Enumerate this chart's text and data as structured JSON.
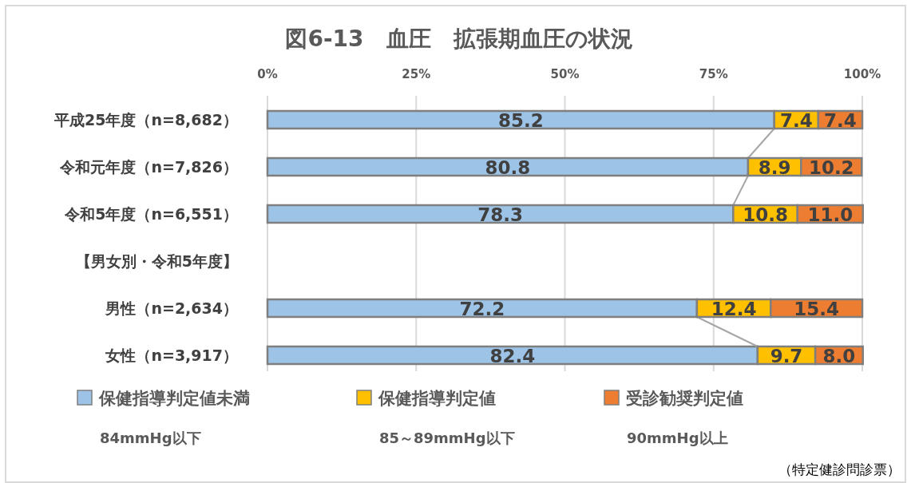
{
  "chart_data": {
    "type": "bar",
    "orientation": "horizontal",
    "stacked": true,
    "title": "図6-13　血圧　拡張期血圧の状況",
    "categories": [
      "平成25年度（n=8,682）",
      "令和元年度（n=7,826）",
      "令和5年度（n=6,551）",
      "【男女別・令和5年度】",
      "男性（n=2,634）",
      "女性（n=3,917）"
    ],
    "series": [
      {
        "name": "保健指導判定値未満",
        "color": "#9dc3e6",
        "values": [
          85.2,
          80.8,
          78.3,
          null,
          72.2,
          82.4
        ],
        "value_labels": [
          "85.2",
          "80.8",
          "78.3",
          null,
          "72.2",
          "82.4"
        ]
      },
      {
        "name": "保健指導判定値",
        "color": "#ffc000",
        "values": [
          7.4,
          8.9,
          10.8,
          null,
          12.4,
          9.7
        ],
        "value_labels": [
          "7.4",
          "8.9",
          "10.8",
          null,
          "12.4",
          "9.7"
        ]
      },
      {
        "name": "受診勧奨判定値",
        "color": "#ed7d31",
        "values": [
          7.4,
          10.2,
          11.0,
          null,
          15.4,
          8.0
        ],
        "value_labels": [
          "7.4",
          "10.2",
          "11.0",
          null,
          "15.4",
          "8.0"
        ]
      }
    ],
    "xlim": [
      0,
      100
    ],
    "xticks": [
      {
        "value": 0,
        "label": "0%"
      },
      {
        "value": 25,
        "label": "25%"
      },
      {
        "value": 50,
        "label": "50%"
      },
      {
        "value": 75,
        "label": "75%"
      },
      {
        "value": 100,
        "label": "100%"
      }
    ],
    "grid": "x",
    "legend": "bottom",
    "annotations": [
      "84mmHg以下",
      "85～89mmHg以下",
      "90mmHg以上",
      "（特定健診問診票）"
    ]
  }
}
